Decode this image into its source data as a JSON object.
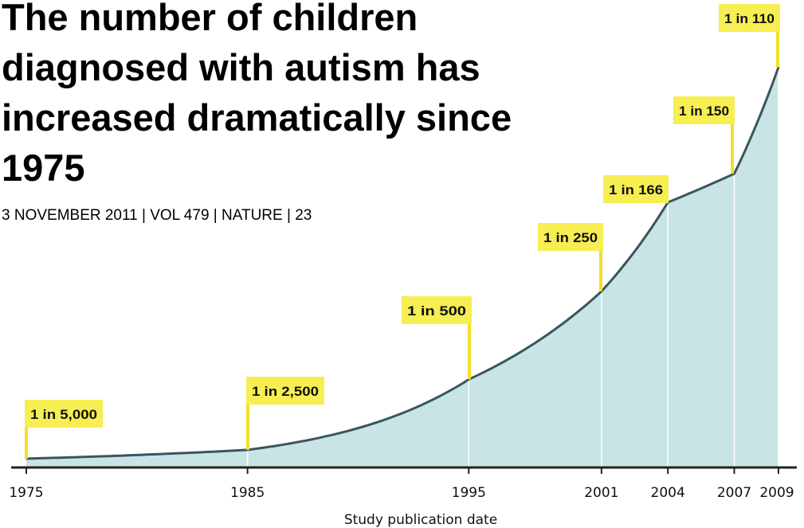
{
  "headline": "The number of children diagnosed with autism has increased dramatically since 1975",
  "citation": "3 NOVEMBER 2011 | VOL 479 | NATURE | 23",
  "colors": {
    "area_fill": "#c8e4e4",
    "curve": "#3a5560",
    "callout_fill": "#f6ee52",
    "callout_stem": "#f2df2a",
    "axis": "#222222",
    "vertical_guide": "#ffffff"
  },
  "chart_data": {
    "type": "area",
    "title": "The number of children diagnosed with autism has increased dramatically since 1975",
    "xlabel": "Study publication date",
    "ylabel": "",
    "x_ticks": [
      1975,
      1985,
      1995,
      2001,
      2004,
      2007,
      2009
    ],
    "xlim": [
      1975,
      2009
    ],
    "points": [
      {
        "x": 1975,
        "label": "1 in 5,000",
        "rate_per_10000": 2.0
      },
      {
        "x": 1985,
        "label": "1 in 2,500",
        "rate_per_10000": 4.0
      },
      {
        "x": 1995,
        "label": "1 in 500",
        "rate_per_10000": 20.0
      },
      {
        "x": 2001,
        "label": "1 in 250",
        "rate_per_10000": 40.0
      },
      {
        "x": 2004,
        "label": "1 in 166",
        "rate_per_10000": 60.2
      },
      {
        "x": 2007,
        "label": "1 in 150",
        "rate_per_10000": 66.7
      },
      {
        "x": 2009,
        "label": "1 in 110",
        "rate_per_10000": 90.9
      }
    ],
    "grid": false,
    "legend": "none"
  }
}
